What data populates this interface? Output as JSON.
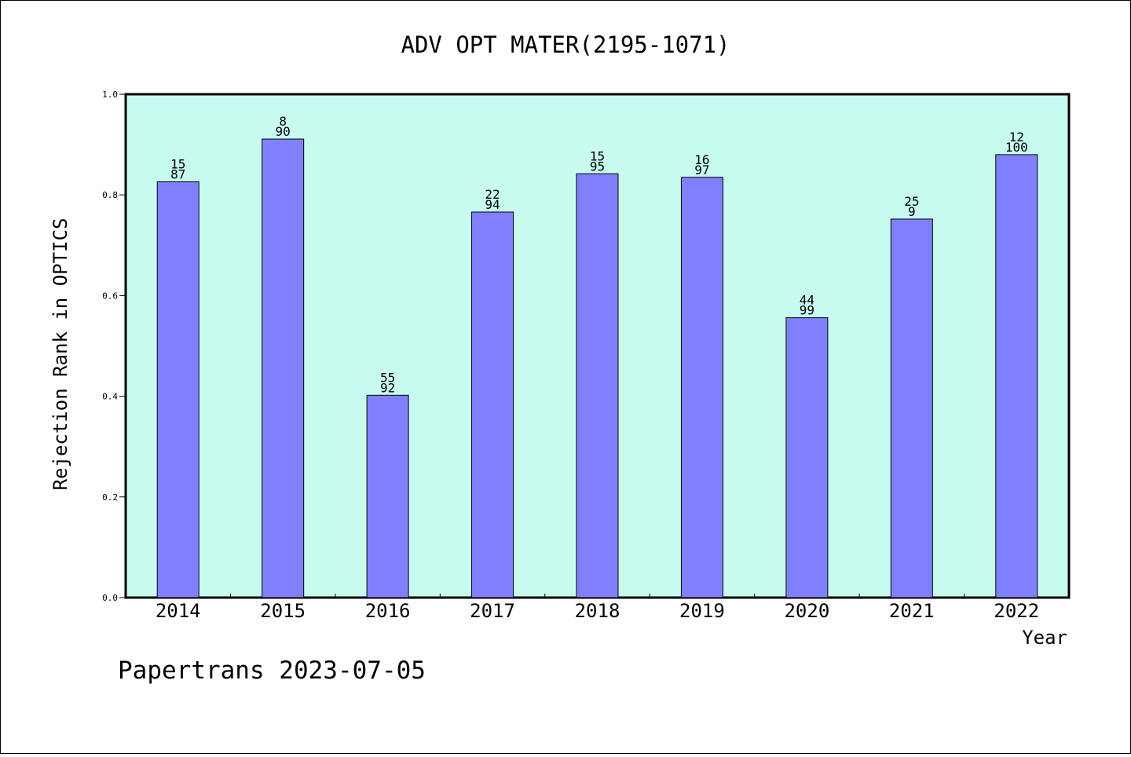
{
  "chart_data": {
    "type": "bar",
    "title": "ADV OPT MATER(2195-1071)",
    "xlabel": "Year",
    "ylabel": "Rejection Rank in OPTICS",
    "ylim": [
      0.0,
      1.0
    ],
    "yticks": [
      "0.0",
      "0.2",
      "0.4",
      "0.6",
      "0.8",
      "1.0"
    ],
    "categories": [
      "2014",
      "2015",
      "2016",
      "2017",
      "2018",
      "2019",
      "2020",
      "2021",
      "2022"
    ],
    "values": [
      0.826,
      0.911,
      0.402,
      0.766,
      0.842,
      0.835,
      0.556,
      0.752,
      0.88
    ],
    "labels_top": [
      "15",
      "8",
      "55",
      "22",
      "15",
      "16",
      "44",
      "25",
      "12"
    ],
    "labels_bottom": [
      "87",
      "90",
      "92",
      "94",
      "95",
      "97",
      "99",
      "9",
      "100"
    ],
    "grid": false,
    "colors": {
      "plot_background": "#c8fbef",
      "bar_fill": "#8080ff",
      "bar_stroke": "#000000"
    }
  },
  "footer": {
    "text": "Papertrans 2023-07-05"
  }
}
